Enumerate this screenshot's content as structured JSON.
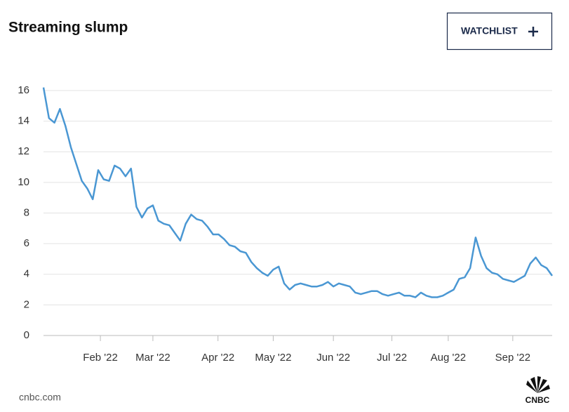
{
  "chart_data": {
    "type": "line",
    "title": "Streaming slump",
    "button": "WATCHLIST",
    "source": "cnbc.com",
    "logo": "CNBC",
    "color": "#4a97d3",
    "grid": true,
    "values": [
      16.2,
      14.2,
      13.9,
      14.8,
      13.7,
      12.3,
      11.2,
      10.1,
      9.6,
      8.9,
      10.8,
      10.2,
      10.1,
      11.1,
      10.9,
      10.4,
      10.9,
      8.4,
      7.7,
      8.3,
      8.5,
      7.5,
      7.3,
      7.2,
      6.7,
      6.2,
      7.3,
      7.9,
      7.6,
      7.5,
      7.1,
      6.6,
      6.6,
      6.3,
      5.9,
      5.8,
      5.5,
      5.4,
      4.8,
      4.4,
      4.1,
      3.9,
      4.3,
      4.5,
      3.4,
      3.0,
      3.3,
      3.4,
      3.3,
      3.2,
      3.2,
      3.3,
      3.5,
      3.2,
      3.4,
      3.3,
      3.2,
      2.8,
      2.7,
      2.8,
      2.9,
      2.9,
      2.7,
      2.6,
      2.7,
      2.8,
      2.6,
      2.6,
      2.5,
      2.8,
      2.6,
      2.5,
      2.5,
      2.6,
      2.8,
      3.0,
      3.7,
      3.8,
      4.4,
      6.4,
      5.2,
      4.4,
      4.1,
      4.0,
      3.7,
      3.6,
      3.5,
      3.7,
      3.9,
      4.7,
      5.1,
      4.6,
      4.4,
      3.9
    ],
    "xlim": [
      0,
      93
    ],
    "xticks": [
      {
        "value": 10.4,
        "label": "Feb '22"
      },
      {
        "value": 20,
        "label": "Mar '22"
      },
      {
        "value": 31.9,
        "label": "Apr '22"
      },
      {
        "value": 42,
        "label": "May '22"
      },
      {
        "value": 53,
        "label": "Jun '22"
      },
      {
        "value": 63.7,
        "label": "Jul '22"
      },
      {
        "value": 74,
        "label": "Aug '22"
      },
      {
        "value": 85.8,
        "label": "Sep '22"
      }
    ],
    "ylim": [
      0,
      16
    ],
    "yticks": [
      0,
      2,
      4,
      6,
      8,
      10,
      12,
      14,
      16
    ]
  }
}
